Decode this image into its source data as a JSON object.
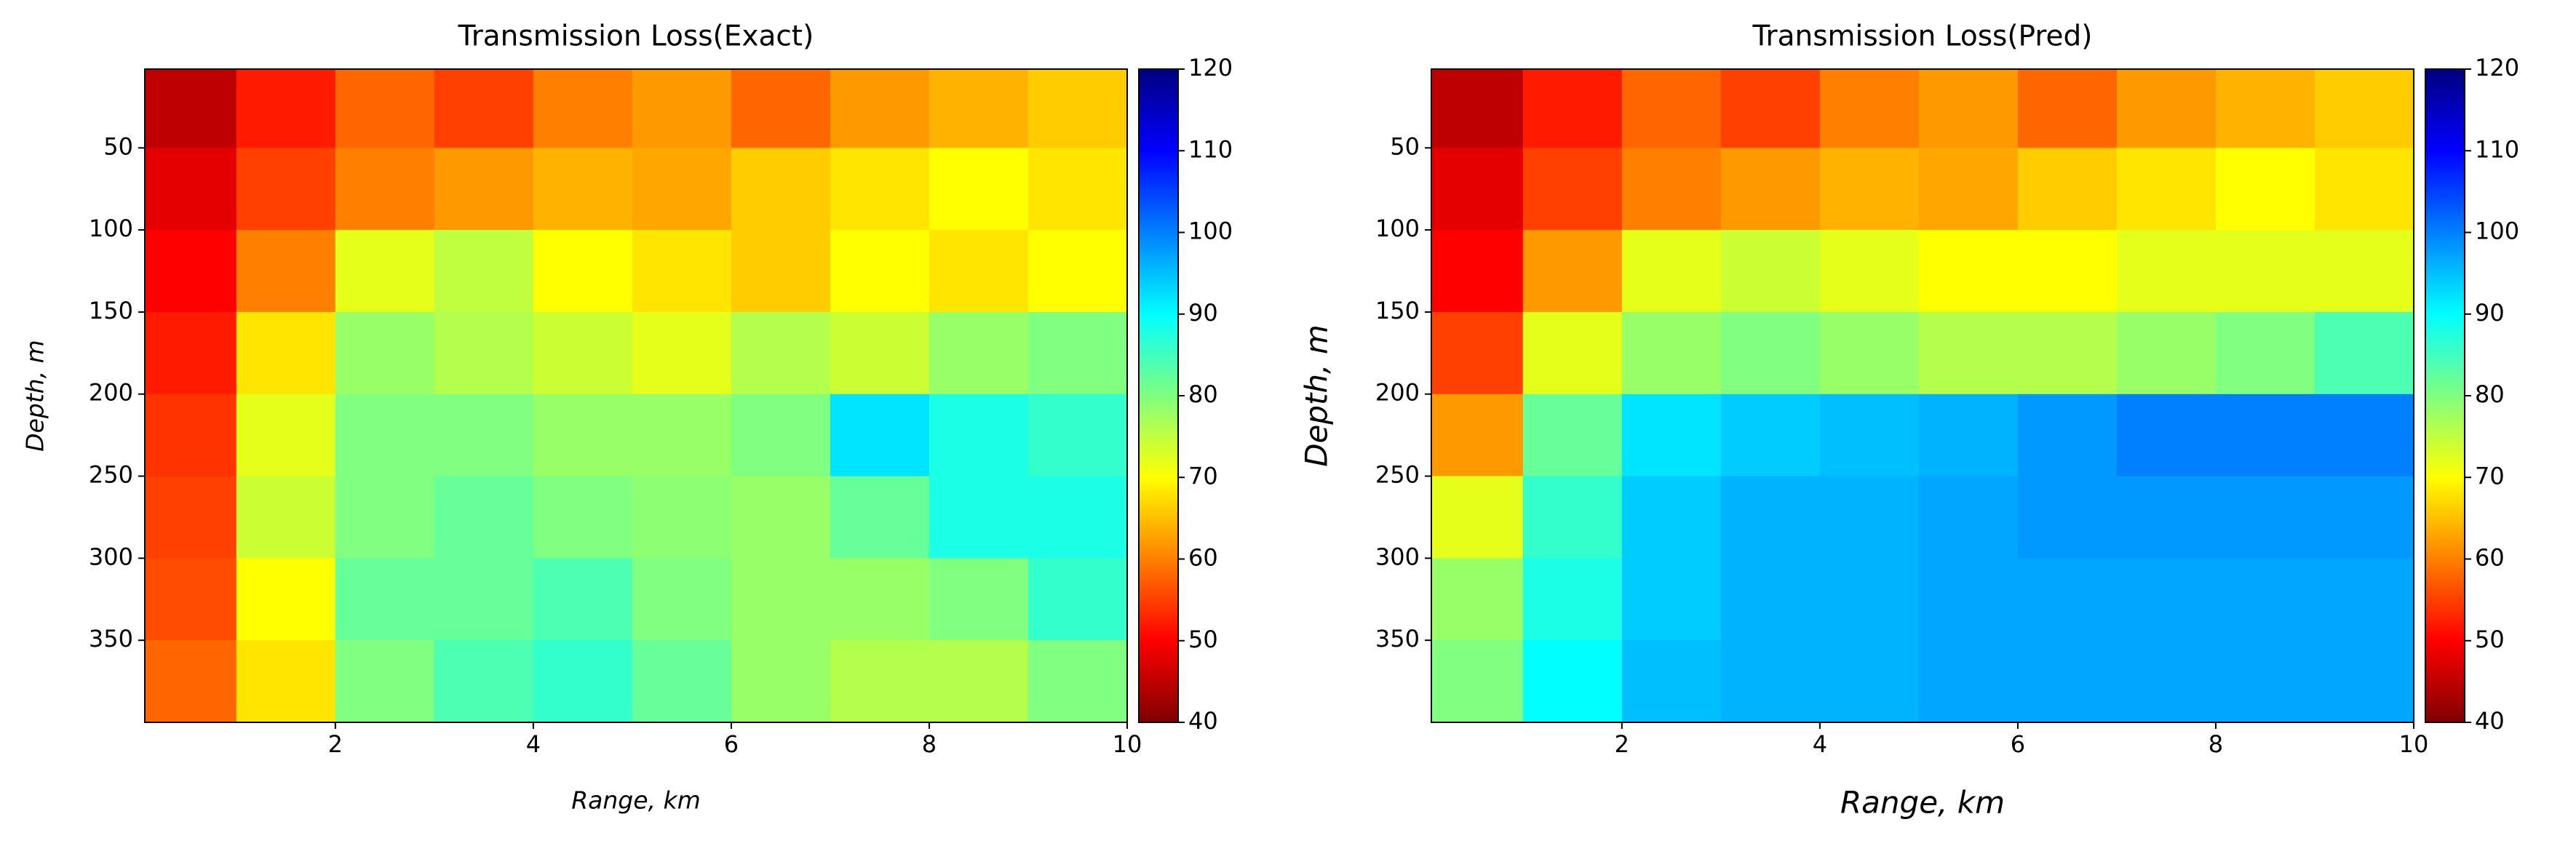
{
  "chart_data": [
    {
      "type": "heatmap",
      "title": "Transmission Loss(Exact)",
      "xlabel": "Range, km",
      "ylabel": "Depth, m",
      "x": [
        0.5,
        1.5,
        2.5,
        3.5,
        4.5,
        5.5,
        6.5,
        7.5,
        8.5,
        9.5
      ],
      "y": [
        25,
        75,
        125,
        175,
        225,
        275,
        325,
        375
      ],
      "z": [
        [
          45,
          52,
          58,
          55,
          60,
          62,
          58,
          62,
          64,
          66
        ],
        [
          48,
          55,
          60,
          62,
          64,
          63,
          66,
          68,
          70,
          68
        ],
        [
          50,
          60,
          72,
          75,
          70,
          68,
          66,
          70,
          68,
          70
        ],
        [
          52,
          68,
          78,
          76,
          74,
          72,
          76,
          74,
          78,
          80
        ],
        [
          54,
          72,
          80,
          80,
          78,
          78,
          80,
          92,
          88,
          86
        ],
        [
          55,
          74,
          80,
          82,
          80,
          79,
          78,
          82,
          88,
          88
        ],
        [
          56,
          70,
          82,
          82,
          84,
          80,
          78,
          78,
          80,
          86
        ],
        [
          58,
          68,
          80,
          84,
          86,
          82,
          78,
          76,
          76,
          80
        ]
      ],
      "xlim": [
        0.075,
        10
      ],
      "ylim": [
        2,
        400
      ],
      "y_inverted": true,
      "xticks": [
        2,
        4,
        6,
        8,
        10
      ],
      "yticks": [
        50,
        100,
        150,
        200,
        250,
        300,
        350
      ],
      "clim": [
        40,
        120
      ],
      "cticks": [
        40,
        50,
        60,
        70,
        80,
        90,
        100,
        110,
        120
      ],
      "colormap": "jet_r"
    },
    {
      "type": "heatmap",
      "title": "Transmission Loss(Pred)",
      "xlabel": "Range, km",
      "ylabel": "Depth, m",
      "x": [
        0.5,
        1.5,
        2.5,
        3.5,
        4.5,
        5.5,
        6.5,
        7.5,
        8.5,
        9.5
      ],
      "y": [
        25,
        75,
        125,
        175,
        225,
        275,
        325,
        375
      ],
      "z": [
        [
          45,
          52,
          58,
          55,
          60,
          62,
          58,
          62,
          64,
          66
        ],
        [
          48,
          55,
          60,
          62,
          64,
          63,
          66,
          68,
          70,
          68
        ],
        [
          50,
          62,
          72,
          74,
          72,
          70,
          70,
          72,
          72,
          72
        ],
        [
          55,
          72,
          78,
          80,
          78,
          76,
          76,
          78,
          80,
          84
        ],
        [
          62,
          82,
          92,
          94,
          95,
          96,
          98,
          100,
          100,
          100
        ],
        [
          72,
          86,
          94,
          96,
          96,
          97,
          98,
          98,
          98,
          98
        ],
        [
          78,
          88,
          94,
          96,
          96,
          97,
          97,
          97,
          97,
          97
        ],
        [
          80,
          90,
          95,
          96,
          96,
          97,
          97,
          97,
          97,
          97
        ]
      ],
      "xlim": [
        0.075,
        10
      ],
      "ylim": [
        2,
        400
      ],
      "y_inverted": true,
      "xticks": [
        2,
        4,
        6,
        8,
        10
      ],
      "yticks": [
        50,
        100,
        150,
        200,
        250,
        300,
        350
      ],
      "clim": [
        40,
        120
      ],
      "cticks": [
        40,
        50,
        60,
        70,
        80,
        90,
        100,
        110,
        120
      ],
      "colormap": "jet_r"
    }
  ]
}
